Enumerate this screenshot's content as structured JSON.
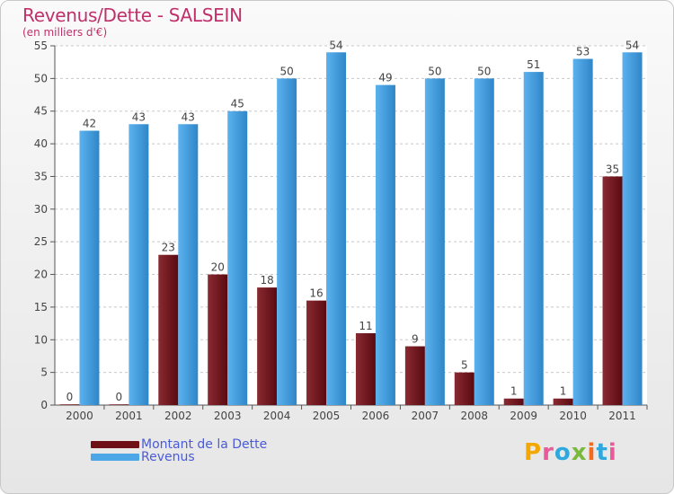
{
  "chart_data": {
    "type": "bar",
    "title": "Revenus/Dette - SALSEIN",
    "subtitle": "(en milliers d'€)",
    "categories": [
      "2000",
      "2001",
      "2002",
      "2003",
      "2004",
      "2005",
      "2006",
      "2007",
      "2008",
      "2009",
      "2010",
      "2011"
    ],
    "series": [
      {
        "name": "Montant de la Dette",
        "color": "#6e1016",
        "values": [
          0,
          0,
          23,
          20,
          18,
          16,
          11,
          9,
          5,
          1,
          1,
          35
        ]
      },
      {
        "name": "Revenus",
        "color": "#4da6e6",
        "values": [
          42,
          43,
          43,
          45,
          50,
          54,
          49,
          50,
          50,
          51,
          53,
          54
        ]
      }
    ],
    "ylim": [
      0,
      55
    ],
    "yticks": [
      0,
      5,
      10,
      15,
      20,
      25,
      30,
      35,
      40,
      45,
      50,
      55
    ],
    "grid": true,
    "legend_position": "bottom-left"
  },
  "logo": {
    "text": "Proxiti",
    "colors": [
      "#f2a800",
      "#e85a9a",
      "#2ea8dd",
      "#7ab93b",
      "#f26a1b",
      "#2ea8dd",
      "#e85a9a"
    ]
  }
}
